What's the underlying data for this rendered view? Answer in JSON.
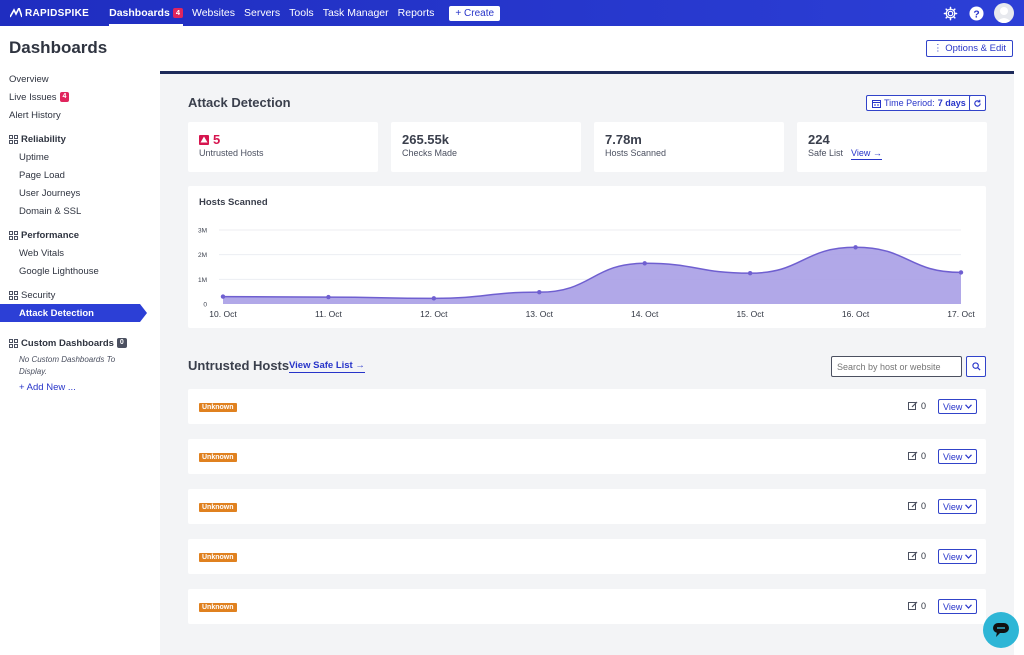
{
  "nav": {
    "brand": "RAPIDSPIKE",
    "links": [
      {
        "label": "Dashboards",
        "badge": "4",
        "active": true
      },
      {
        "label": "Websites"
      },
      {
        "label": "Servers"
      },
      {
        "label": "Tools"
      },
      {
        "label": "Task Manager"
      },
      {
        "label": "Reports"
      }
    ],
    "create_label": "+ Create"
  },
  "header": {
    "title": "Dashboards",
    "options_label": "⋮ Options & Edit"
  },
  "sidebar": {
    "overview": "Overview",
    "live_issues": "Live Issues",
    "live_issues_badge": "4",
    "alert_history": "Alert History",
    "reliability": {
      "label": "Reliability",
      "items": [
        "Uptime",
        "Page Load",
        "User Journeys",
        "Domain & SSL"
      ]
    },
    "performance": {
      "label": "Performance",
      "items": [
        "Web Vitals",
        "Google Lighthouse"
      ]
    },
    "security": {
      "label": "Security",
      "items": [
        "Attack Detection"
      ]
    },
    "custom": {
      "label": "Custom Dashboards",
      "badge": "0",
      "note": "No Custom Dashboards To Display.",
      "add_label": "+ Add New ..."
    }
  },
  "attack": {
    "title": "Attack Detection",
    "time_period_label": "Time Period:",
    "time_period_value": "7 days",
    "stats": [
      {
        "value": "5",
        "label": "Untrusted Hosts"
      },
      {
        "value": "265.55k",
        "label": "Checks Made"
      },
      {
        "value": "7.78m",
        "label": "Hosts Scanned"
      },
      {
        "value": "224",
        "label": "Safe List",
        "link": "View →"
      }
    ]
  },
  "chart_data": {
    "type": "area",
    "title": "Hosts Scanned",
    "x": [
      "10. Oct",
      "11. Oct",
      "12. Oct",
      "13. Oct",
      "14. Oct",
      "15. Oct",
      "16. Oct",
      "17. Oct"
    ],
    "values": [
      300000,
      280000,
      230000,
      480000,
      1650000,
      1250000,
      2300000,
      1280000
    ],
    "yticks": [
      "0",
      "1M",
      "2M",
      "3M"
    ],
    "ylim": [
      0,
      3000000
    ],
    "color": "#6f5fd0",
    "fill": "#a99ee6"
  },
  "hosts": {
    "title": "Untrusted Hosts",
    "safe_list_link": "View Safe List →",
    "search_placeholder": "Search by host or website",
    "rows": [
      {
        "status": "Unknown",
        "count": "0",
        "view": "View"
      },
      {
        "status": "Unknown",
        "count": "0",
        "view": "View"
      },
      {
        "status": "Unknown",
        "count": "0",
        "view": "View"
      },
      {
        "status": "Unknown",
        "count": "0",
        "view": "View"
      },
      {
        "status": "Unknown",
        "count": "0",
        "view": "View"
      }
    ]
  },
  "colors": {
    "primary": "#2c3fd6",
    "alert": "#d6154f",
    "unknown": "#e0811f",
    "chat": "#2eb6d6"
  }
}
